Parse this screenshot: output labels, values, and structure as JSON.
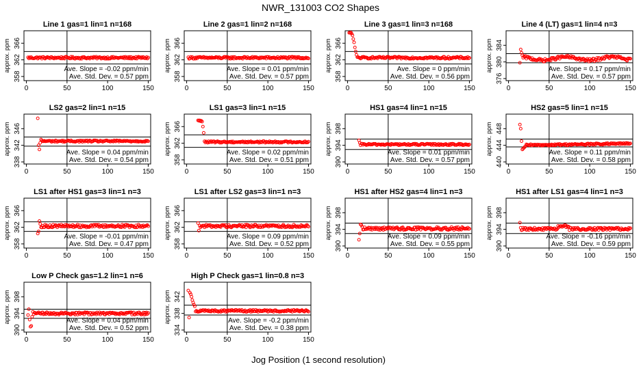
{
  "title": "NWR_131003  CO2 Shapes",
  "xlabel": "Jog Position (1 second resolution)",
  "ylabel": "approx. ppm",
  "colors": {
    "points": "#ff0000",
    "axes": "#000000"
  },
  "chart_data": [
    {
      "type": "scatter",
      "title": "Line 1 gas=1 lin=1 n=168",
      "ylim": [
        357,
        369
      ],
      "yticks": [
        358,
        362,
        366
      ],
      "xlim": [
        -3,
        153
      ],
      "xticks": [
        0,
        50,
        100,
        150
      ],
      "vline": 50,
      "hlines": [
        364.0,
        361.0
      ],
      "pattern": "flat",
      "base": 362.5,
      "noise": 0.25,
      "start": 2,
      "slope_text": "Ave. Slope = -0.02  ppm/min",
      "std_text": "Ave. Std. Dev. = 0.57  ppm"
    },
    {
      "type": "scatter",
      "title": "Line 2 gas=1 lin=2 n=168",
      "ylim": [
        357,
        369
      ],
      "yticks": [
        358,
        362,
        366
      ],
      "xlim": [
        -3,
        153
      ],
      "xticks": [
        0,
        50,
        100,
        150
      ],
      "vline": 50,
      "hlines": [
        364.0,
        361.0
      ],
      "pattern": "flat",
      "base": 362.5,
      "noise": 0.25,
      "start": 2,
      "slope_text": "Ave. Slope = 0.01  ppm/min",
      "std_text": "Ave. Std. Dev. = 0.57  ppm"
    },
    {
      "type": "scatter",
      "title": "Line 3 gas=1 lin=3 n=168",
      "ylim": [
        357,
        369
      ],
      "yticks": [
        358,
        362,
        366
      ],
      "xlim": [
        -3,
        153
      ],
      "xticks": [
        0,
        50,
        100,
        150
      ],
      "vline": 50,
      "hlines": [
        364.0,
        361.0
      ],
      "pattern": "highstart",
      "base": 362.5,
      "noise": 0.25,
      "start": 2,
      "spike": [
        368.5,
        368.5,
        368.6,
        368.3,
        367.9,
        367.0,
        366.2,
        365.0,
        364.0,
        363.2
      ],
      "slope_text": "Ave. Slope = 0  ppm/min",
      "std_text": "Ave. Std. Dev. = 0.56  ppm"
    },
    {
      "type": "scatter",
      "title": "Line 4 (LT) gas=1 lin=4 n=3",
      "ylim": [
        375.5,
        387.5
      ],
      "yticks": [
        376,
        380,
        384
      ],
      "xlim": [
        -3,
        153
      ],
      "xticks": [
        0,
        50,
        100,
        150
      ],
      "vline": 50,
      "hlines": [
        382.0,
        379.8
      ],
      "pattern": "wavy",
      "base": 380.8,
      "noise": 0.35,
      "start": 14,
      "spike": [
        379.8,
        383.0,
        382.2,
        381.6,
        381.0
      ],
      "slope_text": "Ave. Slope = 0.17  ppm/min",
      "std_text": "Ave. Std. Dev. = 0.57  ppm"
    },
    {
      "type": "scatter",
      "title": "LS2 gas=2 lin=1 n=15",
      "ylim": [
        337.5,
        349.5
      ],
      "yticks": [
        338,
        342,
        346
      ],
      "xlim": [
        -3,
        153
      ],
      "xticks": [
        0,
        50,
        100,
        150
      ],
      "vline": 50,
      "hlines": [
        344.0,
        341.8
      ],
      "pattern": "flat",
      "base": 343.0,
      "noise": 0.2,
      "start": 14,
      "spike": [
        348.5,
        342.0,
        341.0,
        342.6,
        343.4
      ],
      "slope_text": "Ave. Slope = 0.04  ppm/min",
      "std_text": "Ave. Std. Dev. = 0.54  ppm"
    },
    {
      "type": "scatter",
      "title": "LS1 gas=3 lin=1 n=15",
      "ylim": [
        357,
        369
      ],
      "yticks": [
        358,
        362,
        366
      ],
      "xlim": [
        -3,
        153
      ],
      "xticks": [
        0,
        50,
        100,
        150
      ],
      "vline": 50,
      "hlines": [
        364.0,
        361.0
      ],
      "pattern": "flat",
      "base": 362.3,
      "noise": 0.2,
      "start": 14,
      "spike": [
        367.5,
        367.4,
        367.5,
        367.3,
        367.4,
        367.2,
        366.0,
        364.5
      ],
      "slope_text": "Ave. Slope = 0.02  ppm/min",
      "std_text": "Ave. Std. Dev. = 0.51  ppm"
    },
    {
      "type": "scatter",
      "title": "HS1 gas=4 lin=1 n=15",
      "ylim": [
        389.5,
        401.5
      ],
      "yticks": [
        390,
        394,
        398
      ],
      "xlim": [
        -3,
        153
      ],
      "xticks": [
        0,
        50,
        100,
        150
      ],
      "vline": 50,
      "hlines": [
        395.5,
        393.0
      ],
      "pattern": "flat",
      "base": 394.2,
      "noise": 0.2,
      "start": 14,
      "spike": [
        395.2,
        394.6,
        394.0
      ],
      "slope_text": "Ave. Slope = 0.01  ppm/min",
      "std_text": "Ave. Std. Dev. = 0.57  ppm"
    },
    {
      "type": "scatter",
      "title": "HS2 gas=5 lin=1 n=15",
      "ylim": [
        439.5,
        451.5
      ],
      "yticks": [
        440,
        444,
        448
      ],
      "xlim": [
        -3,
        153
      ],
      "xticks": [
        0,
        50,
        100,
        150
      ],
      "vline": 50,
      "hlines": [
        445.5,
        443.6
      ],
      "pattern": "rising",
      "base": 444.2,
      "noise": 0.2,
      "start": 14,
      "spike": [
        449.0,
        448.0,
        445.0,
        443.0,
        443.2,
        443.4,
        443.6,
        443.8
      ],
      "slope_text": "Ave. Slope = 0.11  ppm/min",
      "std_text": "Ave. Std. Dev. = 0.58  ppm"
    },
    {
      "type": "scatter",
      "title": "LS1 after HS1 gas=3 lin=1 n=3",
      "ylim": [
        357,
        369
      ],
      "yticks": [
        358,
        362,
        366
      ],
      "xlim": [
        -3,
        153
      ],
      "xticks": [
        0,
        50,
        100,
        150
      ],
      "vline": 50,
      "hlines": [
        363.3,
        361.0
      ],
      "pattern": "flat",
      "base": 362.3,
      "noise": 0.35,
      "start": 14,
      "spike": [
        360.5,
        361.0,
        363.5,
        362.8,
        362.0
      ],
      "slope_text": "Ave. Slope = -0.01  ppm/min",
      "std_text": "Ave. Std. Dev. = 0.47  ppm"
    },
    {
      "type": "scatter",
      "title": "LS1 after LS2 gas=3 lin=1 n=3",
      "ylim": [
        357,
        369
      ],
      "yticks": [
        358,
        362,
        366
      ],
      "xlim": [
        -3,
        153
      ],
      "xticks": [
        0,
        50,
        100,
        150
      ],
      "vline": 50,
      "hlines": [
        363.3,
        361.0
      ],
      "pattern": "flat",
      "base": 362.3,
      "noise": 0.35,
      "start": 14,
      "spike": [
        363.0,
        361.2,
        362.4
      ],
      "slope_text": "Ave. Slope = 0.09  ppm/min",
      "std_text": "Ave. Std. Dev. = 0.52  ppm"
    },
    {
      "type": "scatter",
      "title": "HS1 after HS2 gas=4 lin=1 n=3",
      "ylim": [
        389.5,
        401.5
      ],
      "yticks": [
        390,
        394,
        398
      ],
      "xlim": [
        -3,
        153
      ],
      "xticks": [
        0,
        50,
        100,
        150
      ],
      "vline": 50,
      "hlines": [
        395.5,
        393.0
      ],
      "pattern": "flat",
      "base": 394.2,
      "noise": 0.35,
      "start": 14,
      "spike": [
        391.5,
        393.0,
        395.2,
        395.0,
        394.6
      ],
      "slope_text": "Ave. Slope = 0.09  ppm/min",
      "std_text": "Ave. Std. Dev. = 0.55  ppm"
    },
    {
      "type": "scatter",
      "title": "HS1 after LS1 gas=4 lin=1 n=3",
      "ylim": [
        389.5,
        401.5
      ],
      "yticks": [
        390,
        394,
        398
      ],
      "xlim": [
        -3,
        153
      ],
      "xticks": [
        0,
        50,
        100,
        150
      ],
      "vline": 50,
      "hlines": [
        395.5,
        393.0
      ],
      "pattern": "bump",
      "base": 394.1,
      "noise": 0.3,
      "start": 14,
      "spike": [
        395.6,
        394.4,
        393.8
      ],
      "slope_text": "Ave. Slope = -0.16  ppm/min",
      "std_text": "Ave. Std. Dev. = 0.59  ppm"
    },
    {
      "type": "scatter",
      "title": "Low P Check gas=1.2 lin=1 n=6",
      "ylim": [
        389.5,
        401.5
      ],
      "yticks": [
        390,
        394,
        398
      ],
      "xlim": [
        -3,
        153
      ],
      "xticks": [
        0,
        50,
        100,
        150
      ],
      "vline": 50,
      "hlines": [
        395.0,
        392.8
      ],
      "pattern": "flat",
      "base": 394.0,
      "noise": 0.3,
      "start": 2,
      "spike": [
        393.6,
        395.0,
        392.5,
        390.8,
        391.0,
        393.2,
        394.4
      ],
      "slope_text": "Ave. Slope = 0.04  ppm/min",
      "std_text": "Ave. Std. Dev. = 0.52  ppm"
    },
    {
      "type": "scatter",
      "title": "High P Check gas=1 lin=0.8 n=3",
      "ylim": [
        333.5,
        345.5
      ],
      "yticks": [
        334,
        338,
        342
      ],
      "xlim": [
        -3,
        153
      ],
      "xticks": [
        0,
        50,
        100,
        150
      ],
      "vline": 50,
      "hlines": [
        340.0,
        337.6
      ],
      "pattern": "decay",
      "base": 338.6,
      "noise": 0.25,
      "start": 2,
      "spike": [
        343.5,
        337.0,
        343.0,
        342.6,
        342.0,
        341.2,
        340.6,
        340.1,
        339.7
      ],
      "slope_text": "Ave. Slope = -0.2  ppm/min",
      "std_text": "Ave. Std. Dev. = 0.38  ppm"
    }
  ]
}
